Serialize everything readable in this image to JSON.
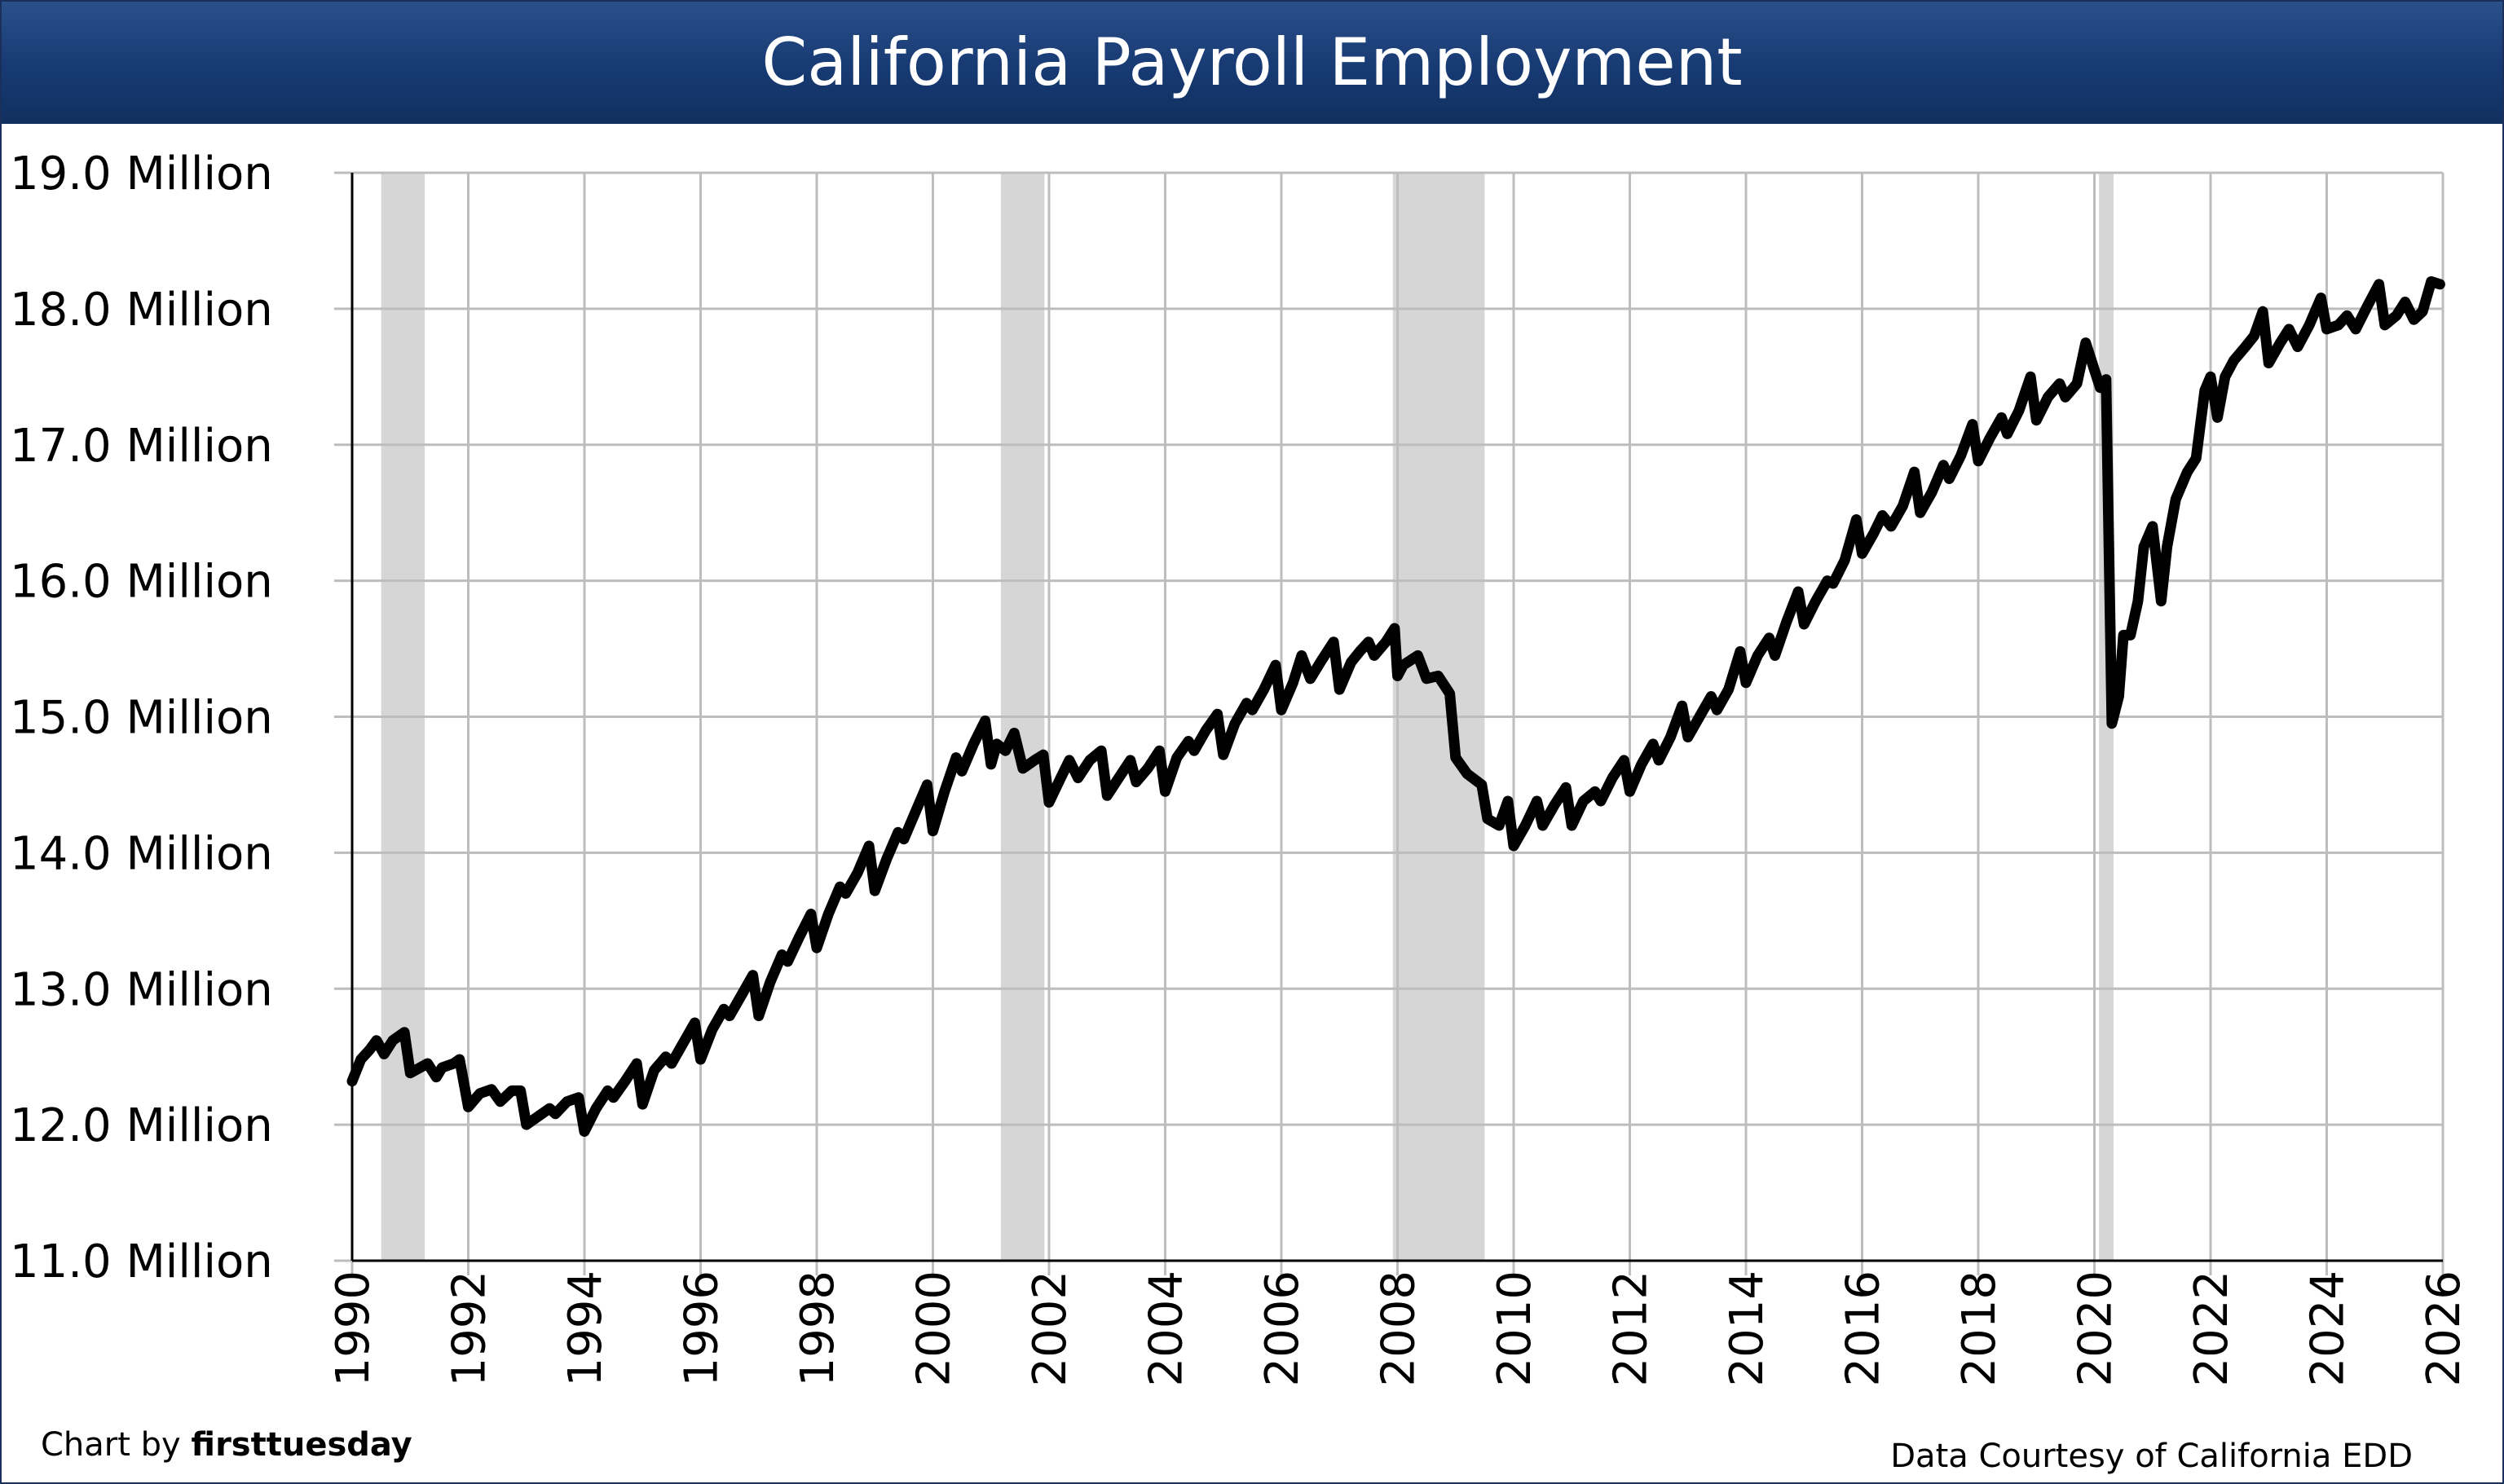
{
  "chart_data": {
    "type": "line",
    "title": "California Payroll Employment",
    "xlabel": "",
    "ylabel": "",
    "x_range": [
      1990,
      2026
    ],
    "ylim": [
      11.0,
      19.0
    ],
    "y_ticks": [
      {
        "value": 11,
        "label": "11.0 Million"
      },
      {
        "value": 12,
        "label": "12.0 Million"
      },
      {
        "value": 13,
        "label": "13.0 Million"
      },
      {
        "value": 14,
        "label": "14.0 Million"
      },
      {
        "value": 15,
        "label": "15.0 Million"
      },
      {
        "value": 16,
        "label": "16.0 Million"
      },
      {
        "value": 17,
        "label": "17.0 Million"
      },
      {
        "value": 18,
        "label": "18.0 Million"
      },
      {
        "value": 19,
        "label": "19.0 Million"
      }
    ],
    "x_ticks": [
      "1990",
      "1992",
      "1994",
      "1996",
      "1998",
      "2000",
      "2002",
      "2004",
      "2006",
      "2008",
      "2010",
      "2012",
      "2014",
      "2016",
      "2018",
      "2020",
      "2022",
      "2024",
      "2026"
    ],
    "grid": true,
    "recessions": [
      {
        "start": 1990.5,
        "end": 1991.25
      },
      {
        "start": 2001.17,
        "end": 2001.92
      },
      {
        "start": 2007.92,
        "end": 2009.5
      },
      {
        "start": 2020.08,
        "end": 2020.33
      }
    ],
    "series": [
      {
        "color": "#000000",
        "points": [
          [
            1990.0,
            12.32
          ],
          [
            1990.15,
            12.48
          ],
          [
            1990.3,
            12.55
          ],
          [
            1990.42,
            12.62
          ],
          [
            1990.55,
            12.52
          ],
          [
            1990.7,
            12.62
          ],
          [
            1990.9,
            12.68
          ],
          [
            1991.0,
            12.38
          ],
          [
            1991.3,
            12.45
          ],
          [
            1991.45,
            12.35
          ],
          [
            1991.55,
            12.42
          ],
          [
            1991.75,
            12.45
          ],
          [
            1991.85,
            12.48
          ],
          [
            1992.0,
            12.13
          ],
          [
            1992.2,
            12.23
          ],
          [
            1992.4,
            12.26
          ],
          [
            1992.55,
            12.17
          ],
          [
            1992.75,
            12.25
          ],
          [
            1992.9,
            12.25
          ],
          [
            1993.0,
            12.0
          ],
          [
            1993.2,
            12.06
          ],
          [
            1993.4,
            12.12
          ],
          [
            1993.5,
            12.08
          ],
          [
            1993.7,
            12.17
          ],
          [
            1993.9,
            12.2
          ],
          [
            1994.0,
            11.95
          ],
          [
            1994.2,
            12.12
          ],
          [
            1994.4,
            12.25
          ],
          [
            1994.5,
            12.2
          ],
          [
            1994.7,
            12.32
          ],
          [
            1994.9,
            12.45
          ],
          [
            1995.0,
            12.15
          ],
          [
            1995.2,
            12.4
          ],
          [
            1995.4,
            12.5
          ],
          [
            1995.5,
            12.45
          ],
          [
            1995.7,
            12.6
          ],
          [
            1995.9,
            12.75
          ],
          [
            1996.0,
            12.48
          ],
          [
            1996.2,
            12.7
          ],
          [
            1996.4,
            12.85
          ],
          [
            1996.5,
            12.8
          ],
          [
            1996.7,
            12.95
          ],
          [
            1996.9,
            13.1
          ],
          [
            1997.0,
            12.8
          ],
          [
            1997.2,
            13.05
          ],
          [
            1997.4,
            13.25
          ],
          [
            1997.5,
            13.2
          ],
          [
            1997.7,
            13.38
          ],
          [
            1997.9,
            13.55
          ],
          [
            1998.0,
            13.3
          ],
          [
            1998.2,
            13.55
          ],
          [
            1998.4,
            13.75
          ],
          [
            1998.5,
            13.7
          ],
          [
            1998.7,
            13.85
          ],
          [
            1998.9,
            14.05
          ],
          [
            1999.0,
            13.72
          ],
          [
            1999.2,
            13.95
          ],
          [
            1999.4,
            14.15
          ],
          [
            1999.5,
            14.1
          ],
          [
            1999.7,
            14.3
          ],
          [
            1999.9,
            14.5
          ],
          [
            2000.0,
            14.16
          ],
          [
            2000.2,
            14.45
          ],
          [
            2000.4,
            14.7
          ],
          [
            2000.5,
            14.6
          ],
          [
            2000.7,
            14.8
          ],
          [
            2000.9,
            14.97
          ],
          [
            2001.0,
            14.65
          ],
          [
            2001.1,
            14.8
          ],
          [
            2001.25,
            14.75
          ],
          [
            2001.4,
            14.88
          ],
          [
            2001.55,
            14.62
          ],
          [
            2001.75,
            14.68
          ],
          [
            2001.9,
            14.72
          ],
          [
            2002.0,
            14.37
          ],
          [
            2002.2,
            14.55
          ],
          [
            2002.35,
            14.68
          ],
          [
            2002.5,
            14.55
          ],
          [
            2002.7,
            14.68
          ],
          [
            2002.9,
            14.75
          ],
          [
            2003.0,
            14.42
          ],
          [
            2003.2,
            14.55
          ],
          [
            2003.4,
            14.68
          ],
          [
            2003.5,
            14.52
          ],
          [
            2003.7,
            14.62
          ],
          [
            2003.9,
            14.75
          ],
          [
            2004.0,
            14.45
          ],
          [
            2004.2,
            14.7
          ],
          [
            2004.4,
            14.82
          ],
          [
            2004.5,
            14.75
          ],
          [
            2004.7,
            14.9
          ],
          [
            2004.9,
            15.02
          ],
          [
            2005.0,
            14.72
          ],
          [
            2005.2,
            14.95
          ],
          [
            2005.4,
            15.1
          ],
          [
            2005.5,
            15.05
          ],
          [
            2005.7,
            15.2
          ],
          [
            2005.9,
            15.38
          ],
          [
            2006.0,
            15.05
          ],
          [
            2006.2,
            15.25
          ],
          [
            2006.35,
            15.45
          ],
          [
            2006.5,
            15.28
          ],
          [
            2006.7,
            15.42
          ],
          [
            2006.9,
            15.55
          ],
          [
            2007.0,
            15.2
          ],
          [
            2007.2,
            15.4
          ],
          [
            2007.35,
            15.48
          ],
          [
            2007.5,
            15.55
          ],
          [
            2007.6,
            15.45
          ],
          [
            2007.8,
            15.55
          ],
          [
            2007.95,
            15.65
          ],
          [
            2008.0,
            15.3
          ],
          [
            2008.1,
            15.38
          ],
          [
            2008.35,
            15.45
          ],
          [
            2008.5,
            15.28
          ],
          [
            2008.7,
            15.3
          ],
          [
            2008.9,
            15.17
          ],
          [
            2009.0,
            14.7
          ],
          [
            2009.2,
            14.58
          ],
          [
            2009.45,
            14.5
          ],
          [
            2009.55,
            14.25
          ],
          [
            2009.75,
            14.2
          ],
          [
            2009.9,
            14.38
          ],
          [
            2010.0,
            14.05
          ],
          [
            2010.2,
            14.2
          ],
          [
            2010.4,
            14.38
          ],
          [
            2010.5,
            14.2
          ],
          [
            2010.7,
            14.35
          ],
          [
            2010.9,
            14.48
          ],
          [
            2011.0,
            14.2
          ],
          [
            2011.2,
            14.38
          ],
          [
            2011.4,
            14.45
          ],
          [
            2011.5,
            14.38
          ],
          [
            2011.7,
            14.55
          ],
          [
            2011.9,
            14.68
          ],
          [
            2012.0,
            14.45
          ],
          [
            2012.2,
            14.65
          ],
          [
            2012.4,
            14.8
          ],
          [
            2012.5,
            14.68
          ],
          [
            2012.7,
            14.85
          ],
          [
            2012.9,
            15.08
          ],
          [
            2013.0,
            14.85
          ],
          [
            2013.2,
            15.0
          ],
          [
            2013.4,
            15.15
          ],
          [
            2013.5,
            15.05
          ],
          [
            2013.7,
            15.2
          ],
          [
            2013.9,
            15.48
          ],
          [
            2014.0,
            15.25
          ],
          [
            2014.2,
            15.45
          ],
          [
            2014.4,
            15.58
          ],
          [
            2014.5,
            15.45
          ],
          [
            2014.7,
            15.7
          ],
          [
            2014.9,
            15.92
          ],
          [
            2015.0,
            15.68
          ],
          [
            2015.2,
            15.85
          ],
          [
            2015.4,
            16.0
          ],
          [
            2015.5,
            15.98
          ],
          [
            2015.7,
            16.15
          ],
          [
            2015.9,
            16.45
          ],
          [
            2016.0,
            16.2
          ],
          [
            2016.2,
            16.35
          ],
          [
            2016.35,
            16.48
          ],
          [
            2016.5,
            16.4
          ],
          [
            2016.7,
            16.55
          ],
          [
            2016.9,
            16.8
          ],
          [
            2017.0,
            16.5
          ],
          [
            2017.2,
            16.65
          ],
          [
            2017.4,
            16.85
          ],
          [
            2017.5,
            16.75
          ],
          [
            2017.7,
            16.92
          ],
          [
            2017.9,
            17.15
          ],
          [
            2018.0,
            16.88
          ],
          [
            2018.2,
            17.05
          ],
          [
            2018.4,
            17.2
          ],
          [
            2018.5,
            17.08
          ],
          [
            2018.7,
            17.25
          ],
          [
            2018.9,
            17.5
          ],
          [
            2019.0,
            17.18
          ],
          [
            2019.2,
            17.35
          ],
          [
            2019.4,
            17.45
          ],
          [
            2019.5,
            17.35
          ],
          [
            2019.7,
            17.45
          ],
          [
            2019.85,
            17.75
          ],
          [
            2020.0,
            17.55
          ],
          [
            2020.1,
            17.42
          ],
          [
            2020.2,
            17.48
          ],
          [
            2020.3,
            14.95
          ],
          [
            2020.42,
            15.15
          ],
          [
            2020.5,
            15.6
          ],
          [
            2020.62,
            15.6
          ],
          [
            2020.75,
            15.85
          ],
          [
            2020.85,
            16.25
          ],
          [
            2021.0,
            16.4
          ],
          [
            2021.15,
            15.85
          ],
          [
            2021.25,
            16.25
          ],
          [
            2021.4,
            16.6
          ],
          [
            2021.6,
            16.8
          ],
          [
            2021.75,
            16.9
          ],
          [
            2021.9,
            17.4
          ],
          [
            2022.0,
            17.5
          ],
          [
            2022.12,
            17.2
          ],
          [
            2022.25,
            17.5
          ],
          [
            2022.4,
            17.62
          ],
          [
            2022.6,
            17.72
          ],
          [
            2022.75,
            17.8
          ],
          [
            2022.9,
            17.98
          ],
          [
            2023.0,
            17.6
          ],
          [
            2023.2,
            17.75
          ],
          [
            2023.35,
            17.85
          ],
          [
            2023.5,
            17.72
          ],
          [
            2023.7,
            17.88
          ],
          [
            2023.9,
            18.08
          ],
          [
            2024.0,
            17.85
          ],
          [
            2024.2,
            17.88
          ],
          [
            2024.35,
            17.95
          ],
          [
            2024.5,
            17.85
          ],
          [
            2024.7,
            18.02
          ],
          [
            2024.9,
            18.18
          ],
          [
            2025.0,
            17.88
          ],
          [
            2025.2,
            17.95
          ],
          [
            2025.35,
            18.05
          ],
          [
            2025.5,
            17.92
          ],
          [
            2025.65,
            17.98
          ],
          [
            2025.8,
            18.2
          ],
          [
            2025.95,
            18.18
          ]
        ]
      }
    ]
  },
  "footer": {
    "credit_prefix": "Chart by ",
    "credit_brand": "firsttuesday",
    "source": "Data Courtesy of California EDD"
  }
}
